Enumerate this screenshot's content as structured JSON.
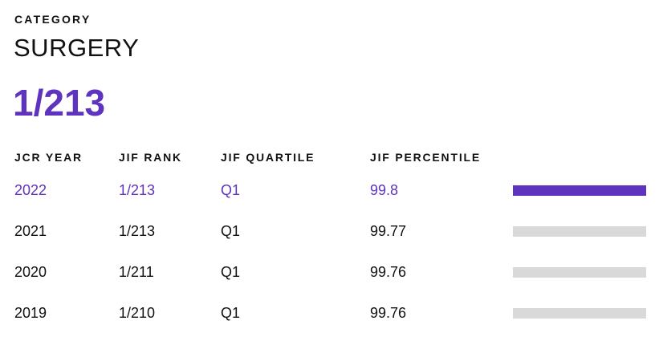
{
  "category_label": "CATEGORY",
  "category_name": "SURGERY",
  "current_rank": "1/213",
  "colors": {
    "accent": "#5e33bf",
    "bar_inactive": "#d9d9d9"
  },
  "table": {
    "headers": [
      "JCR YEAR",
      "JIF RANK",
      "JIF QUARTILE",
      "JIF PERCENTILE"
    ],
    "rows": [
      {
        "year": "2022",
        "rank": "1/213",
        "quartile": "Q1",
        "percentile": "99.8",
        "percentile_value": 99.8,
        "active": true
      },
      {
        "year": "2021",
        "rank": "1/213",
        "quartile": "Q1",
        "percentile": "99.77",
        "percentile_value": 99.77,
        "active": false
      },
      {
        "year": "2020",
        "rank": "1/211",
        "quartile": "Q1",
        "percentile": "99.76",
        "percentile_value": 99.76,
        "active": false
      },
      {
        "year": "2019",
        "rank": "1/210",
        "quartile": "Q1",
        "percentile": "99.76",
        "percentile_value": 99.76,
        "active": false
      }
    ]
  }
}
